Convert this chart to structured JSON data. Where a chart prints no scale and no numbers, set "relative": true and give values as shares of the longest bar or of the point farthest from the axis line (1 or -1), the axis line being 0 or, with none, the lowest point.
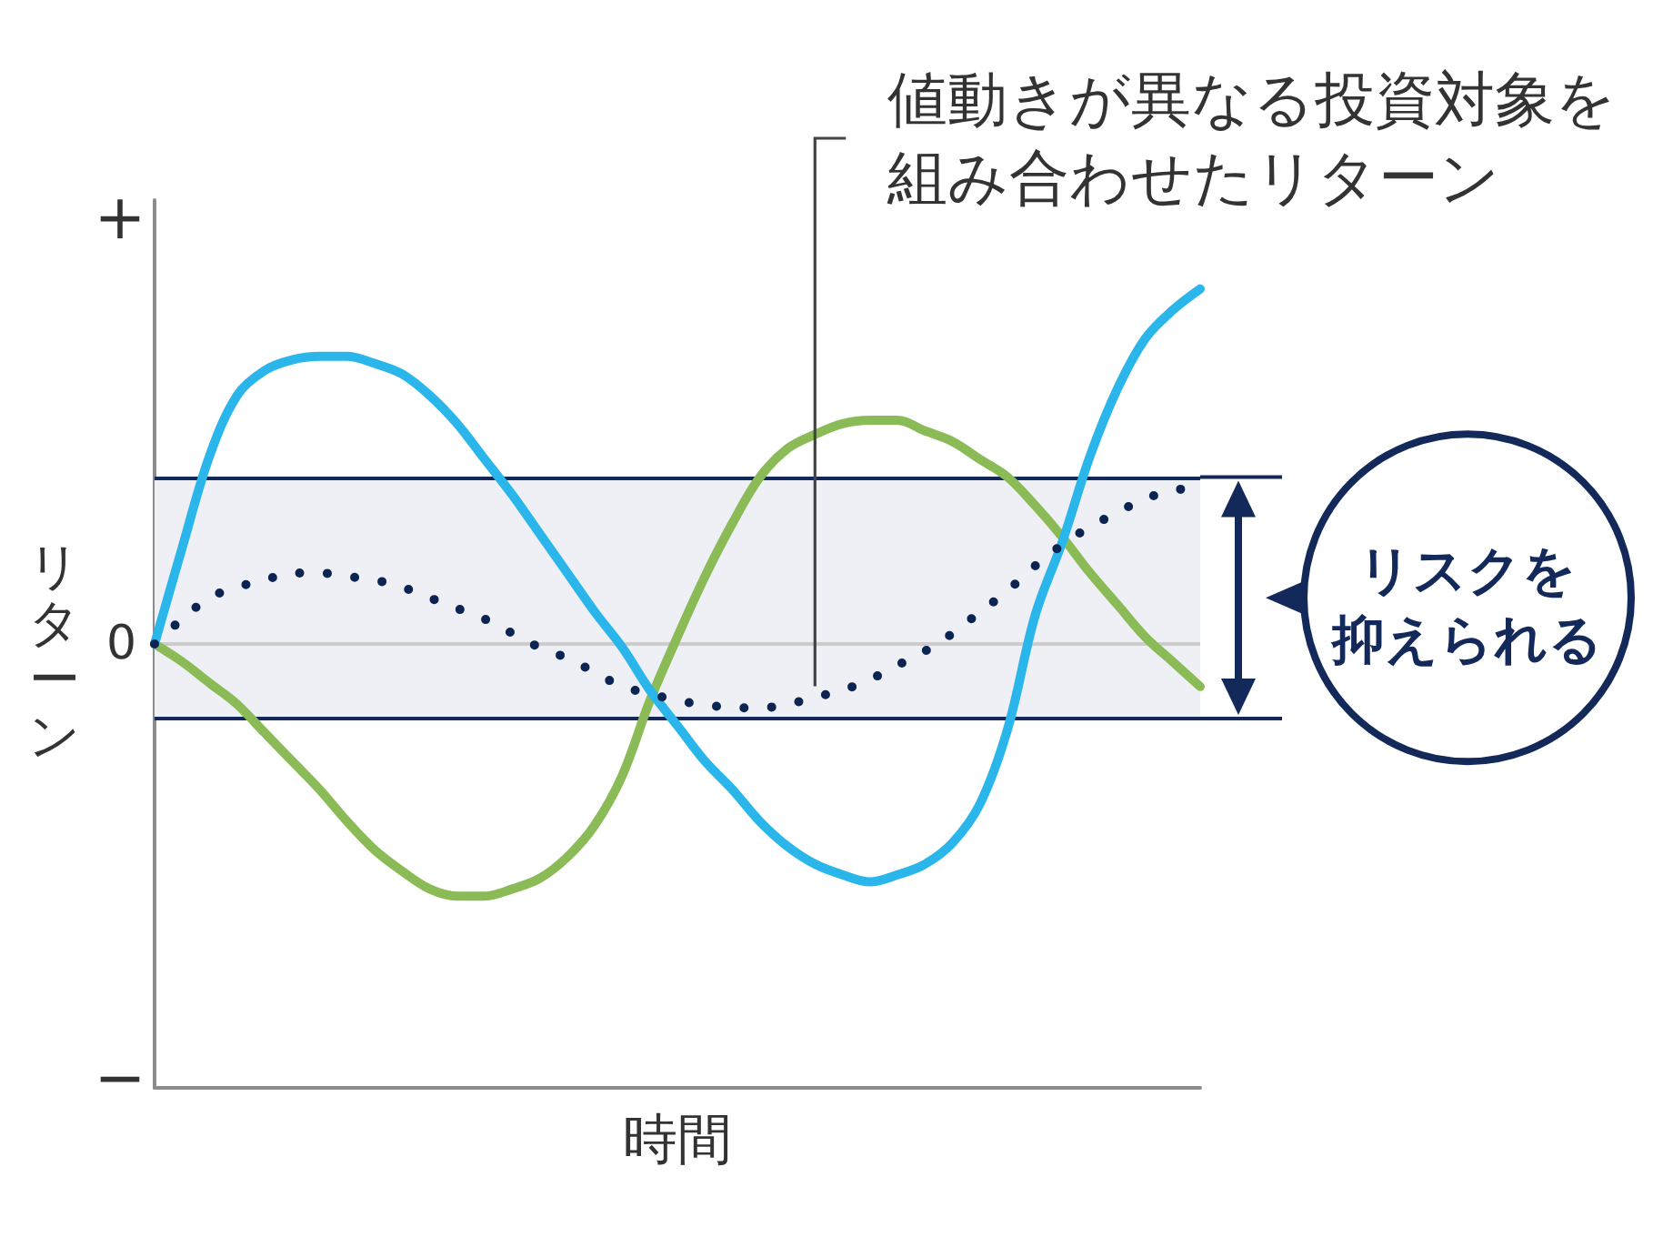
{
  "chart_data": {
    "type": "line",
    "xlabel": "時間",
    "ylabel": "リターン",
    "relative": true,
    "categories": [
      null,
      null,
      null,
      null,
      null,
      null,
      null,
      null,
      null,
      null,
      null,
      null,
      null,
      null,
      null,
      null,
      null,
      null,
      null,
      null,
      null,
      null,
      null,
      null,
      null,
      null,
      null,
      null,
      null,
      null,
      null,
      null,
      null,
      null,
      null,
      null,
      null,
      null,
      null
    ],
    "series": [
      {
        "color": "#8bbb57",
        "values": [
          0,
          -0.05,
          -0.11,
          -0.17,
          -0.25,
          -0.33,
          -0.41,
          -0.5,
          -0.58,
          -0.64,
          -0.69,
          -0.71,
          -0.71,
          -0.69,
          -0.66,
          -0.6,
          -0.51,
          -0.37,
          -0.16,
          0.02,
          0.19,
          0.34,
          0.47,
          0.55,
          0.59,
          0.62,
          0.63,
          0.63,
          0.6,
          0.57,
          0.52,
          0.47,
          0.39,
          0.3,
          0.2,
          0.11,
          0.02,
          -0.05,
          -0.12
        ]
      },
      {
        "color": "#2ab6ea",
        "values": [
          0,
          0.27,
          0.53,
          0.7,
          0.77,
          0.8,
          0.81,
          0.81,
          0.79,
          0.76,
          0.7,
          0.62,
          0.52,
          0.42,
          0.31,
          0.2,
          0.09,
          -0.01,
          -0.13,
          -0.23,
          -0.33,
          -0.41,
          -0.5,
          -0.57,
          -0.62,
          -0.65,
          -0.67,
          -0.65,
          -0.62,
          -0.56,
          -0.45,
          -0.24,
          0.08,
          0.29,
          0.53,
          0.72,
          0.86,
          0.94,
          1.0
        ]
      },
      {
        "name": "値動きが異なる投資対象を組み合わせたリターン",
        "color": "#0b2452",
        "line_style": "dotted",
        "values": [
          0,
          0.07,
          0.13,
          0.16,
          0.18,
          0.2,
          0.2,
          0.19,
          0.18,
          0.16,
          0.13,
          0.1,
          0.07,
          0.03,
          -0.01,
          -0.04,
          -0.08,
          -0.12,
          -0.14,
          -0.16,
          -0.17,
          -0.18,
          -0.18,
          -0.17,
          -0.15,
          -0.13,
          -0.1,
          -0.06,
          -0.02,
          0.03,
          0.09,
          0.15,
          0.22,
          0.28,
          0.33,
          0.37,
          0.41,
          0.43,
          0.45
        ]
      }
    ],
    "ref_lines": [
      {
        "axis": "y",
        "value": 0,
        "label": "0",
        "color": "#cccccc"
      },
      {
        "axis": "y",
        "value": 0.47,
        "color": "#13295a"
      },
      {
        "axis": "y",
        "value": -0.21,
        "color": "#13295a"
      }
    ],
    "bands": [
      {
        "axis": "y",
        "from": -0.21,
        "to": 0.47,
        "label": "リスクを抑えられる",
        "color": "#eff0f5"
      }
    ],
    "annotations": [
      "+",
      "−"
    ]
  }
}
